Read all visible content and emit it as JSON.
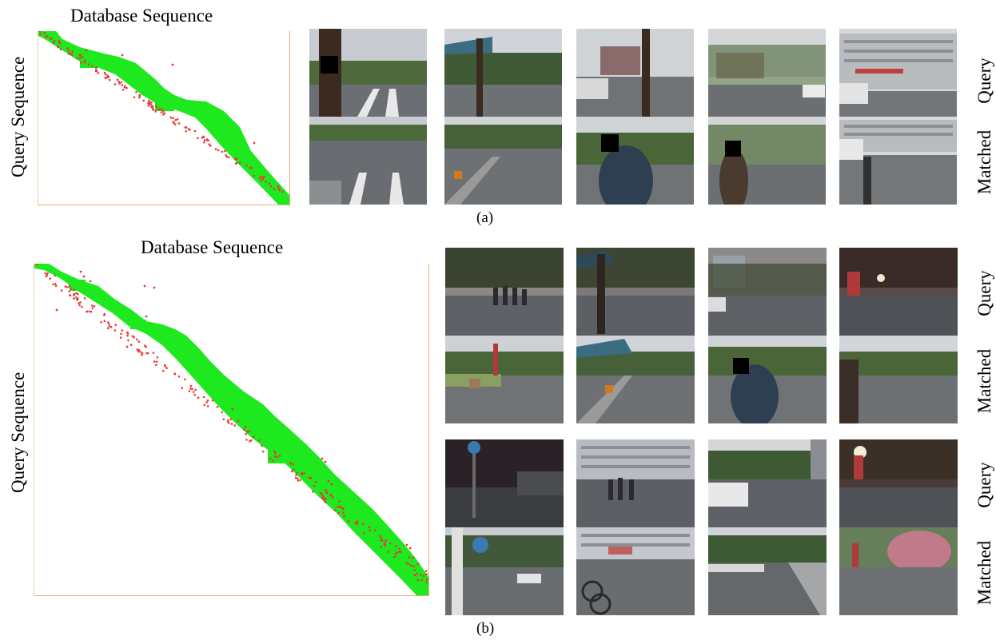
{
  "figure": {
    "panel_a": {
      "plot_title": "Database Sequence",
      "plot_ylabel": "Query Sequence",
      "caption": "(a)",
      "row_labels": [
        "Query",
        "Matched"
      ]
    },
    "panel_b": {
      "plot_title": "Database Sequence",
      "plot_ylabel": "Query Sequence",
      "caption": "(b)",
      "row_labels": [
        "Query",
        "Matched",
        "Query",
        "Matched"
      ]
    }
  },
  "colors": {
    "match_band": "#1ee81e",
    "match_points": "#e83a3a",
    "axis_border": "#e0b070"
  }
}
